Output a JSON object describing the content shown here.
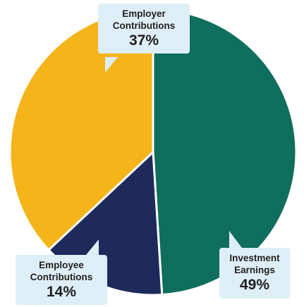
{
  "chart_data": {
    "type": "pie",
    "title": "",
    "slices": [
      {
        "label_line1": "Investment",
        "label_line2": "Earnings",
        "value": 49,
        "value_label": "49%",
        "color": "#0f6e5c"
      },
      {
        "label_line1": "Employee",
        "label_line2": "Contributions",
        "value": 14,
        "value_label": "14%",
        "color": "#1f2a5c"
      },
      {
        "label_line1": "Employer",
        "label_line2": "Contributions",
        "value": 37,
        "value_label": "37%",
        "color": "#f4b41a"
      }
    ],
    "start_angle": "12 o'clock",
    "direction": "clockwise",
    "slice_separator_color": "#ffffff",
    "callout_background": "#deeef6",
    "legend": "none"
  }
}
